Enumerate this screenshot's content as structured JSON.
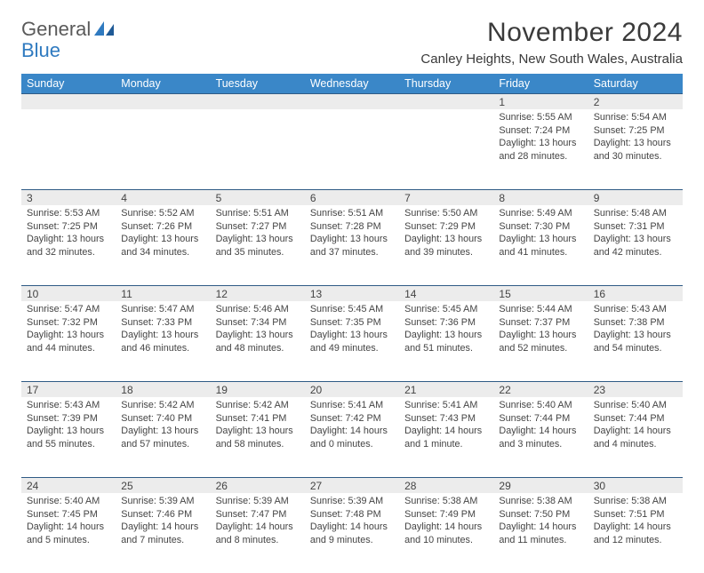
{
  "logo": {
    "text1": "General",
    "text2": "Blue"
  },
  "title": "November 2024",
  "location": "Canley Heights, New South Wales, Australia",
  "colors": {
    "header_bg": "#3a87c8",
    "header_fg": "#ffffff",
    "daynum_bg": "#ececec",
    "daynum_border": "#2f5b85",
    "text": "#444444",
    "logo_gray": "#5a5a5a",
    "logo_blue": "#2f7ac0"
  },
  "weekdays": [
    "Sunday",
    "Monday",
    "Tuesday",
    "Wednesday",
    "Thursday",
    "Friday",
    "Saturday"
  ],
  "weeks": [
    [
      null,
      null,
      null,
      null,
      null,
      {
        "n": "1",
        "sr": "5:55 AM",
        "ss": "7:24 PM",
        "dl": "13 hours and 28 minutes."
      },
      {
        "n": "2",
        "sr": "5:54 AM",
        "ss": "7:25 PM",
        "dl": "13 hours and 30 minutes."
      }
    ],
    [
      {
        "n": "3",
        "sr": "5:53 AM",
        "ss": "7:25 PM",
        "dl": "13 hours and 32 minutes."
      },
      {
        "n": "4",
        "sr": "5:52 AM",
        "ss": "7:26 PM",
        "dl": "13 hours and 34 minutes."
      },
      {
        "n": "5",
        "sr": "5:51 AM",
        "ss": "7:27 PM",
        "dl": "13 hours and 35 minutes."
      },
      {
        "n": "6",
        "sr": "5:51 AM",
        "ss": "7:28 PM",
        "dl": "13 hours and 37 minutes."
      },
      {
        "n": "7",
        "sr": "5:50 AM",
        "ss": "7:29 PM",
        "dl": "13 hours and 39 minutes."
      },
      {
        "n": "8",
        "sr": "5:49 AM",
        "ss": "7:30 PM",
        "dl": "13 hours and 41 minutes."
      },
      {
        "n": "9",
        "sr": "5:48 AM",
        "ss": "7:31 PM",
        "dl": "13 hours and 42 minutes."
      }
    ],
    [
      {
        "n": "10",
        "sr": "5:47 AM",
        "ss": "7:32 PM",
        "dl": "13 hours and 44 minutes."
      },
      {
        "n": "11",
        "sr": "5:47 AM",
        "ss": "7:33 PM",
        "dl": "13 hours and 46 minutes."
      },
      {
        "n": "12",
        "sr": "5:46 AM",
        "ss": "7:34 PM",
        "dl": "13 hours and 48 minutes."
      },
      {
        "n": "13",
        "sr": "5:45 AM",
        "ss": "7:35 PM",
        "dl": "13 hours and 49 minutes."
      },
      {
        "n": "14",
        "sr": "5:45 AM",
        "ss": "7:36 PM",
        "dl": "13 hours and 51 minutes."
      },
      {
        "n": "15",
        "sr": "5:44 AM",
        "ss": "7:37 PM",
        "dl": "13 hours and 52 minutes."
      },
      {
        "n": "16",
        "sr": "5:43 AM",
        "ss": "7:38 PM",
        "dl": "13 hours and 54 minutes."
      }
    ],
    [
      {
        "n": "17",
        "sr": "5:43 AM",
        "ss": "7:39 PM",
        "dl": "13 hours and 55 minutes."
      },
      {
        "n": "18",
        "sr": "5:42 AM",
        "ss": "7:40 PM",
        "dl": "13 hours and 57 minutes."
      },
      {
        "n": "19",
        "sr": "5:42 AM",
        "ss": "7:41 PM",
        "dl": "13 hours and 58 minutes."
      },
      {
        "n": "20",
        "sr": "5:41 AM",
        "ss": "7:42 PM",
        "dl": "14 hours and 0 minutes."
      },
      {
        "n": "21",
        "sr": "5:41 AM",
        "ss": "7:43 PM",
        "dl": "14 hours and 1 minute."
      },
      {
        "n": "22",
        "sr": "5:40 AM",
        "ss": "7:44 PM",
        "dl": "14 hours and 3 minutes."
      },
      {
        "n": "23",
        "sr": "5:40 AM",
        "ss": "7:44 PM",
        "dl": "14 hours and 4 minutes."
      }
    ],
    [
      {
        "n": "24",
        "sr": "5:40 AM",
        "ss": "7:45 PM",
        "dl": "14 hours and 5 minutes."
      },
      {
        "n": "25",
        "sr": "5:39 AM",
        "ss": "7:46 PM",
        "dl": "14 hours and 7 minutes."
      },
      {
        "n": "26",
        "sr": "5:39 AM",
        "ss": "7:47 PM",
        "dl": "14 hours and 8 minutes."
      },
      {
        "n": "27",
        "sr": "5:39 AM",
        "ss": "7:48 PM",
        "dl": "14 hours and 9 minutes."
      },
      {
        "n": "28",
        "sr": "5:38 AM",
        "ss": "7:49 PM",
        "dl": "14 hours and 10 minutes."
      },
      {
        "n": "29",
        "sr": "5:38 AM",
        "ss": "7:50 PM",
        "dl": "14 hours and 11 minutes."
      },
      {
        "n": "30",
        "sr": "5:38 AM",
        "ss": "7:51 PM",
        "dl": "14 hours and 12 minutes."
      }
    ]
  ],
  "labels": {
    "sunrise": "Sunrise: ",
    "sunset": "Sunset: ",
    "daylight": "Daylight: "
  }
}
